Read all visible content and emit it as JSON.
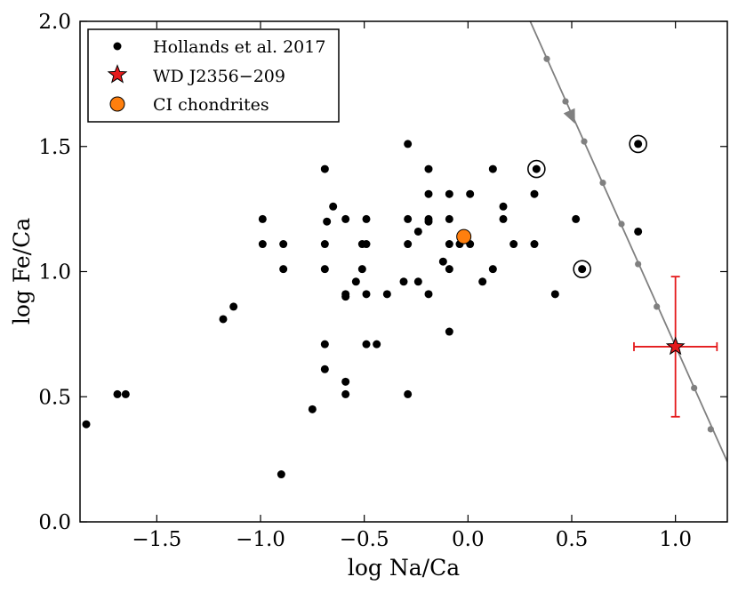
{
  "chart_data": {
    "type": "scatter",
    "title": "",
    "xlabel": "log Na/Ca",
    "ylabel": "log Fe/Ca",
    "xlim": [
      -1.87,
      1.25
    ],
    "ylim": [
      0.0,
      2.0
    ],
    "xticks": [
      -1.5,
      -1.0,
      -0.5,
      0.0,
      0.5,
      1.0
    ],
    "xtick_labels": [
      "−1.5",
      "−1.0",
      "−0.5",
      "0.0",
      "0.5",
      "1.0"
    ],
    "yticks": [
      0.0,
      0.5,
      1.0,
      1.5,
      2.0
    ],
    "ytick_labels": [
      "0.0",
      "0.5",
      "1.0",
      "1.5",
      "2.0"
    ],
    "grid": false,
    "legend_position": "top-left",
    "colors": {
      "hollands": "#000000",
      "wd": "#e41a1c",
      "ci": "#ff7f0e",
      "track": "#808080"
    },
    "series": [
      {
        "name": "Hollands et al. 2017",
        "marker": "circle",
        "points": [
          [
            -1.84,
            0.39
          ],
          [
            -1.69,
            0.51
          ],
          [
            -1.65,
            0.51
          ],
          [
            -1.18,
            0.81
          ],
          [
            -1.13,
            0.86
          ],
          [
            -0.99,
            1.21
          ],
          [
            -0.99,
            1.11
          ],
          [
            -0.89,
            1.11
          ],
          [
            -0.89,
            1.01
          ],
          [
            -0.9,
            0.19
          ],
          [
            -0.75,
            0.45
          ],
          [
            -0.69,
            1.41
          ],
          [
            -0.68,
            1.2
          ],
          [
            -0.69,
            1.11
          ],
          [
            -0.69,
            1.01
          ],
          [
            -0.69,
            0.71
          ],
          [
            -0.69,
            0.61
          ],
          [
            -0.65,
            1.26
          ],
          [
            -0.59,
            1.21
          ],
          [
            -0.59,
            0.91
          ],
          [
            -0.59,
            0.9
          ],
          [
            -0.59,
            0.56
          ],
          [
            -0.59,
            0.51
          ],
          [
            -0.54,
            0.96
          ],
          [
            -0.51,
            1.11
          ],
          [
            -0.51,
            1.01
          ],
          [
            -0.49,
            1.21
          ],
          [
            -0.49,
            1.11
          ],
          [
            -0.49,
            0.91
          ],
          [
            -0.49,
            0.71
          ],
          [
            -0.44,
            0.71
          ],
          [
            -0.39,
            0.91
          ],
          [
            -0.31,
            0.96
          ],
          [
            -0.29,
            1.51
          ],
          [
            -0.29,
            1.21
          ],
          [
            -0.29,
            1.11
          ],
          [
            -0.29,
            0.51
          ],
          [
            -0.24,
            1.16
          ],
          [
            -0.24,
            0.96
          ],
          [
            -0.19,
            1.41
          ],
          [
            -0.19,
            1.31
          ],
          [
            -0.19,
            1.21
          ],
          [
            -0.19,
            1.2
          ],
          [
            -0.19,
            0.91
          ],
          [
            -0.12,
            1.04
          ],
          [
            -0.09,
            1.31
          ],
          [
            -0.09,
            1.21
          ],
          [
            -0.09,
            1.11
          ],
          [
            -0.09,
            1.01
          ],
          [
            -0.09,
            0.76
          ],
          [
            -0.04,
            1.11
          ],
          [
            0.01,
            1.31
          ],
          [
            0.01,
            1.11
          ],
          [
            0.07,
            0.96
          ],
          [
            0.12,
            1.41
          ],
          [
            0.12,
            1.01
          ],
          [
            0.17,
            1.26
          ],
          [
            0.17,
            1.21
          ],
          [
            0.22,
            1.11
          ],
          [
            0.32,
            1.31
          ],
          [
            0.32,
            1.11
          ],
          [
            0.33,
            1.41
          ],
          [
            0.42,
            0.91
          ],
          [
            0.52,
            1.21
          ],
          [
            0.55,
            1.01
          ],
          [
            0.82,
            1.51
          ],
          [
            0.82,
            1.16
          ]
        ]
      },
      {
        "name": "WD J2356−209",
        "marker": "star",
        "points": [
          [
            1.0,
            0.7
          ]
        ],
        "xerr": [
          0.2
        ],
        "yerr": [
          0.28
        ]
      },
      {
        "name": "CI chondrites",
        "marker": "circle-large",
        "points": [
          [
            -0.02,
            1.14
          ]
        ]
      }
    ],
    "ringed_points": [
      [
        0.33,
        1.41
      ],
      [
        0.55,
        1.01
      ],
      [
        0.82,
        1.51
      ]
    ],
    "model_track": {
      "line": [
        [
          0.3,
          2.0
        ],
        [
          1.25,
          0.24
        ]
      ],
      "markers": [
        [
          0.38,
          1.85
        ],
        [
          0.47,
          1.68
        ],
        [
          0.56,
          1.52
        ],
        [
          0.65,
          1.355
        ],
        [
          0.74,
          1.19
        ],
        [
          0.82,
          1.03
        ],
        [
          0.91,
          0.86
        ],
        [
          1.0,
          0.7
        ],
        [
          1.09,
          0.535
        ],
        [
          1.17,
          0.37
        ]
      ],
      "arrow_at": [
        0.5,
        1.62
      ]
    }
  }
}
